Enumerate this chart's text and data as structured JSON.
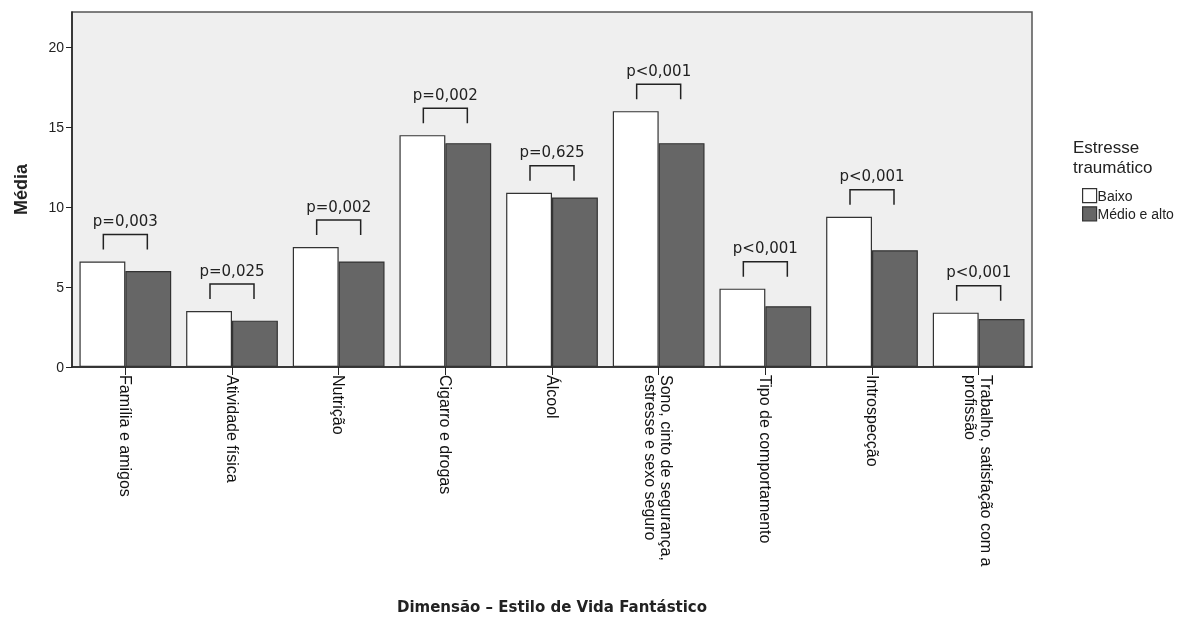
{
  "chart_data": {
    "type": "bar",
    "xlabel": "Dimensão – Estilo de Vida Fantástico",
    "ylabel": "Média",
    "legend_title": "Estresse traumático",
    "categories": [
      "Família e amigos",
      "Atividade física",
      "Nutrição",
      "Cigarro e drogas",
      "Álcool",
      "Sono, cinto de segurança,\nestresse e sexo seguro",
      "Tipo de comportamento",
      "Introspecção",
      "Trabalho, satisfação com a\nprofissão"
    ],
    "series": [
      {
        "name": "Baixo",
        "color": "#ffffff",
        "values": [
          6.6,
          3.5,
          7.5,
          14.5,
          10.9,
          16.0,
          4.9,
          9.4,
          3.4
        ]
      },
      {
        "name": "Médio e alto",
        "color": "#666666",
        "values": [
          6.0,
          2.9,
          6.6,
          14.0,
          10.6,
          14.0,
          3.8,
          7.3,
          3.0
        ]
      }
    ],
    "ylim": [
      0,
      22.2
    ],
    "yticks": [
      0,
      5,
      10,
      15,
      20
    ],
    "grid": false,
    "legend": "right",
    "annotations": [
      "p=0,003",
      "p=0,025",
      "p=0,002",
      "p=0,002",
      "p=0,625",
      "p<0,001",
      "p<0,001",
      "p<0,001",
      "p<0,001"
    ]
  }
}
